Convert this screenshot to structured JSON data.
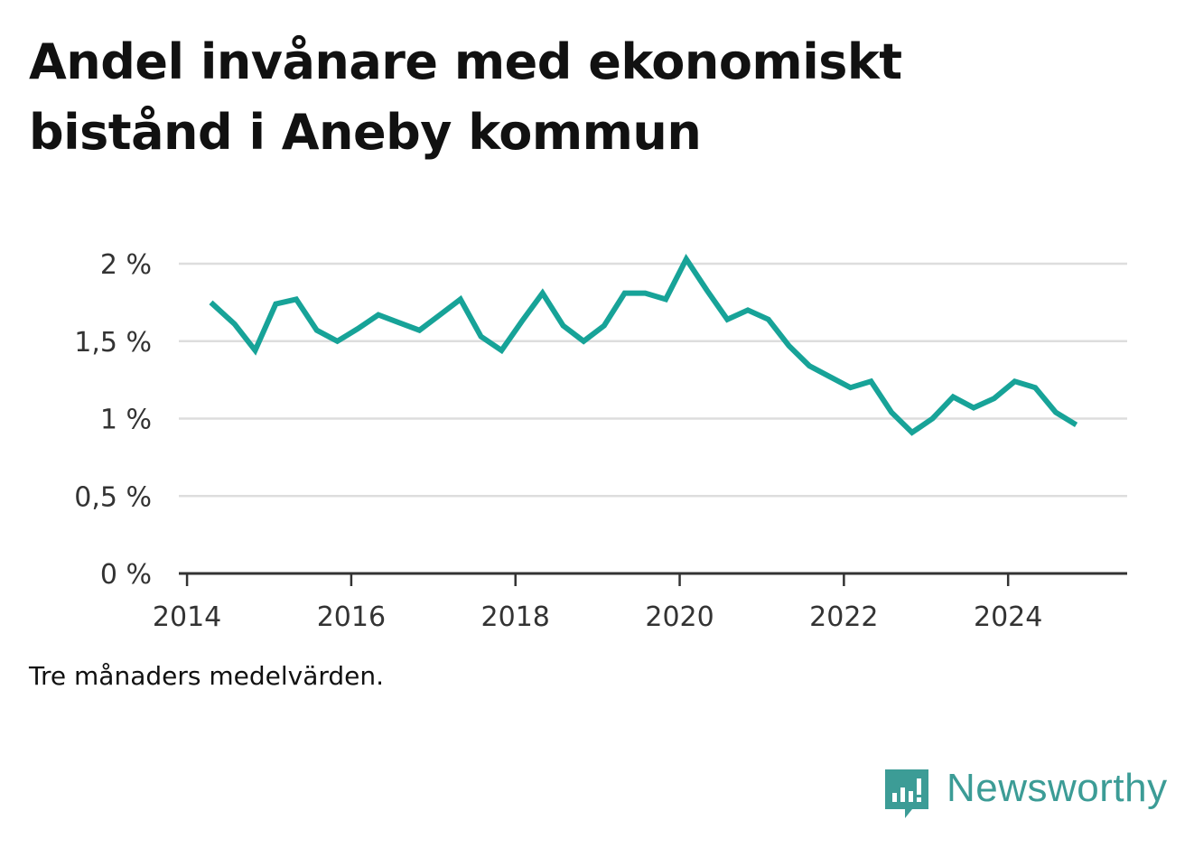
{
  "title": "Andel invånare med ekonomiskt bistånd i Aneby kommun",
  "note": "Tre månaders medelvärden.",
  "brand": {
    "name": "Newsworthy",
    "icon": "newsworthy-bar-chart-logo-icon"
  },
  "colors": {
    "line": "#17a398",
    "grid": "#dddddd",
    "axis": "#333333",
    "brand": "#3c9c96"
  },
  "chart_data": {
    "type": "line",
    "title": "Andel invånare med ekonomiskt bistånd i Aneby kommun",
    "xlabel": "",
    "ylabel": "",
    "xlim": [
      2013.9,
      2025.45
    ],
    "ylim": [
      0,
      2
    ],
    "grid": true,
    "x_ticks": [
      2014,
      2016,
      2018,
      2020,
      2022,
      2024
    ],
    "x_tick_labels": [
      "2014",
      "2016",
      "2018",
      "2020",
      "2022",
      "2024"
    ],
    "y_ticks": [
      0,
      0.5,
      1,
      1.5,
      2
    ],
    "y_tick_labels": [
      "0 %",
      "0,5 %",
      "1 %",
      "1,5 %",
      "2 %"
    ],
    "series": [
      {
        "x": [
          2014.29,
          2014.58,
          2014.83,
          2015.08,
          2015.33,
          2015.58,
          2015.83,
          2016.08,
          2016.33,
          2016.58,
          2016.83,
          2017.08,
          2017.33,
          2017.58,
          2017.83,
          2018.08,
          2018.33,
          2018.58,
          2018.83,
          2019.08,
          2019.33,
          2019.58,
          2019.83,
          2020.08,
          2020.33,
          2020.58,
          2020.83,
          2021.08,
          2021.33,
          2021.58,
          2021.83,
          2022.08,
          2022.33,
          2022.58,
          2022.83,
          2023.08,
          2023.33,
          2023.58,
          2023.83,
          2024.08,
          2024.33,
          2024.58,
          2024.83
        ],
        "values": [
          1.75,
          1.61,
          1.44,
          1.74,
          1.77,
          1.57,
          1.5,
          1.58,
          1.67,
          1.62,
          1.57,
          1.67,
          1.77,
          1.53,
          1.44,
          1.63,
          1.81,
          1.6,
          1.5,
          1.6,
          1.81,
          1.81,
          1.77,
          2.03,
          1.83,
          1.64,
          1.7,
          1.64,
          1.47,
          1.34,
          1.27,
          1.2,
          1.24,
          1.04,
          0.91,
          1.0,
          1.14,
          1.07,
          1.13,
          1.24,
          1.2,
          1.04,
          0.96
        ]
      }
    ]
  }
}
